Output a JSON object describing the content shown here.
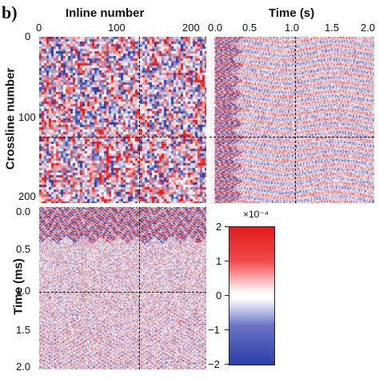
{
  "figure": {
    "panel_label": "b)",
    "inline_axis": {
      "title": "Inline number",
      "ticks": [
        "0",
        "100",
        "200"
      ]
    },
    "time_axis_top": {
      "title": "Time (s)",
      "ticks": [
        "0.0",
        "0.5",
        "1.0",
        "1.5",
        "2.0"
      ]
    },
    "crossline_axis": {
      "title": "Crossline number",
      "ticks": [
        "0",
        "100",
        "200"
      ]
    },
    "time_axis_left": {
      "title": "Time (ms)",
      "ticks": [
        "0.0",
        "0.5",
        "1.0",
        "1.5",
        "2.0"
      ]
    },
    "colorbar": {
      "exponent": "×10⁻⁴",
      "ticks": [
        "2",
        "1",
        "0",
        "−1",
        "−2"
      ],
      "range": [
        -2,
        2
      ],
      "colors": {
        "low": "#2b3fa8",
        "mid": "#ffffff",
        "high": "#e41a1c"
      }
    }
  },
  "slices": {
    "crossline_index_marker": 125,
    "inline_index_marker": 125,
    "time_marker_s": 1.05
  }
}
